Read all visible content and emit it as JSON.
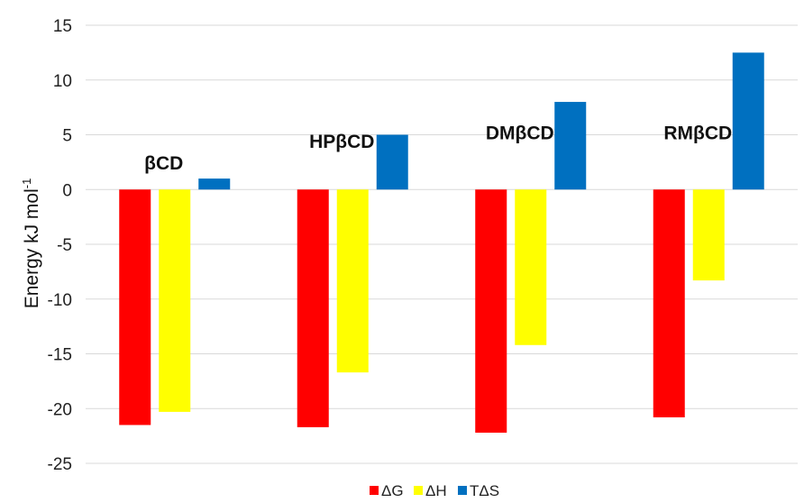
{
  "chart_data": {
    "type": "bar",
    "categories": [
      "βCD",
      "HPβCD",
      "DMβCD",
      "RMβCD"
    ],
    "series": [
      {
        "name": "ΔG",
        "color": "#ff0000",
        "values": [
          -21.5,
          -21.7,
          -22.2,
          -20.8
        ]
      },
      {
        "name": "ΔH",
        "color": "#ffff00",
        "values": [
          -20.3,
          -16.7,
          -14.2,
          -8.3
        ]
      },
      {
        "name": "TΔS",
        "color": "#0070c0",
        "values": [
          1.0,
          5.0,
          8.0,
          12.5
        ]
      }
    ],
    "ylabel_main": "Energy kJ mol",
    "ylabel_sup": "-1",
    "ylim": [
      -25,
      15
    ],
    "yticks": [
      15,
      10,
      5,
      0,
      -5,
      -10,
      -15,
      -20,
      -25
    ],
    "grid": true,
    "legend_position": "bottom-center"
  }
}
